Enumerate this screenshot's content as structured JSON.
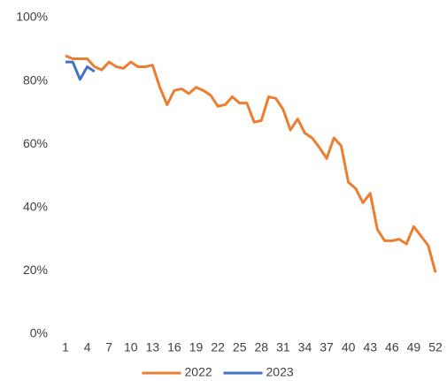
{
  "chart_data": {
    "type": "line",
    "x": [
      1,
      2,
      3,
      4,
      5,
      6,
      7,
      8,
      9,
      10,
      11,
      12,
      13,
      14,
      15,
      16,
      17,
      18,
      19,
      20,
      21,
      22,
      23,
      24,
      25,
      26,
      27,
      28,
      29,
      30,
      31,
      32,
      33,
      34,
      35,
      36,
      37,
      38,
      39,
      40,
      41,
      42,
      43,
      44,
      45,
      46,
      47,
      48,
      49,
      50,
      51,
      52
    ],
    "series": [
      {
        "name": "2022",
        "color": "#ED7D31",
        "values": [
          88,
          87,
          87,
          87,
          84.5,
          83.5,
          86,
          84.5,
          84,
          86,
          84.5,
          84.5,
          85,
          78,
          72.5,
          77,
          77.5,
          76,
          78,
          77,
          75.5,
          72,
          72.5,
          75,
          73,
          73,
          67,
          67.5,
          75,
          74.5,
          71,
          64.5,
          68,
          63.5,
          62,
          59,
          55.5,
          62,
          59.5,
          48,
          46,
          41.5,
          44.5,
          33,
          29.5,
          29.5,
          30,
          28.5,
          34,
          31,
          28,
          19.5
        ]
      },
      {
        "name": "2023",
        "color": "#4472C4",
        "values": [
          86,
          86,
          80.5,
          84.5,
          83,
          null,
          null,
          null,
          null,
          null,
          null,
          null,
          null,
          null,
          null,
          null,
          null,
          null,
          null,
          null,
          null,
          null,
          null,
          null,
          null,
          null,
          null,
          null,
          null,
          null,
          null,
          null,
          null,
          null,
          null,
          null,
          null,
          null,
          null,
          null,
          null,
          null,
          null,
          null,
          null,
          null,
          null,
          null,
          null,
          null,
          null,
          null
        ]
      }
    ],
    "xlim": [
      1,
      52
    ],
    "xticks": [
      1,
      4,
      7,
      10,
      13,
      16,
      19,
      22,
      25,
      28,
      31,
      34,
      37,
      40,
      43,
      46,
      49,
      52
    ],
    "ylim": [
      0,
      100
    ],
    "yticks": [
      {
        "value": 0,
        "label": "0%"
      },
      {
        "value": 20,
        "label": "20%"
      },
      {
        "value": 40,
        "label": "40%"
      },
      {
        "value": 60,
        "label": "60%"
      },
      {
        "value": 80,
        "label": "80%"
      },
      {
        "value": 100,
        "label": "100%"
      }
    ],
    "grid": false,
    "legend": "bottom"
  }
}
